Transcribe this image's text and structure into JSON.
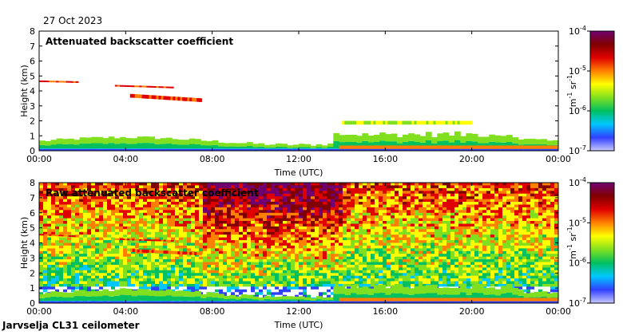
{
  "date_label": "27 Oct 2023",
  "site_label": "Jarvselja CL31 ceilometer",
  "colors": {
    "scale": [
      "#c8c8ff",
      "#3040ff",
      "#00c8ff",
      "#00c060",
      "#80e020",
      "#ffff00",
      "#ff8000",
      "#e00000",
      "#800000",
      "#700070"
    ]
  },
  "chart_data": [
    {
      "type": "heatmap",
      "title": "Attenuated backscatter coefficient",
      "xlabel": "Time (UTC)",
      "ylabel": "Height (km)",
      "x_ticks": [
        "00:00",
        "04:00",
        "08:00",
        "12:00",
        "16:00",
        "20:00",
        "00:00"
      ],
      "y_ticks": [
        "0",
        "1",
        "2",
        "3",
        "4",
        "5",
        "6",
        "7",
        "8"
      ],
      "ylim": [
        0,
        8
      ],
      "colorbar": {
        "ticks_base": [
          "10",
          "10",
          "10",
          "10"
        ],
        "ticks_exp": [
          "-4",
          "-5",
          "-6",
          "-7"
        ],
        "unit_base": "m",
        "unit_exp1": "-1",
        "unit_mid": " sr",
        "unit_exp2": "-1",
        "scale": "log",
        "range": [
          1e-07,
          0.0001
        ]
      },
      "features": [
        {
          "name": "aerosol-layer",
          "x_hours": [
            0,
            24
          ],
          "height_km": [
            0,
            0.6
          ]
        },
        {
          "name": "elevated-layer",
          "x_hours": [
            0,
            1.8
          ],
          "height_km": [
            4.6,
            4.7
          ]
        },
        {
          "name": "elevated-layer",
          "x_hours": [
            3.5,
            6.2
          ],
          "height_km": [
            4.2,
            4.4
          ]
        },
        {
          "name": "elevated-layer",
          "x_hours": [
            4.2,
            7.5
          ],
          "height_km": [
            3.3,
            3.8
          ]
        },
        {
          "name": "low-cloud",
          "x_hours": [
            14,
            20
          ],
          "height_km": [
            1.5,
            2.0
          ]
        }
      ]
    },
    {
      "type": "heatmap",
      "title": "Raw attenuated backscatter coefficient",
      "xlabel": "Time (UTC)",
      "ylabel": "Height (km)",
      "x_ticks": [
        "00:00",
        "04:00",
        "08:00",
        "12:00",
        "16:00",
        "20:00",
        "00:00"
      ],
      "y_ticks": [
        "0",
        "1",
        "2",
        "3",
        "4",
        "5",
        "6",
        "7",
        "8"
      ],
      "ylim": [
        0,
        8
      ],
      "colorbar": {
        "ticks_base": [
          "10",
          "10",
          "10",
          "10"
        ],
        "ticks_exp": [
          "-4",
          "-5",
          "-6",
          "-7"
        ],
        "unit_base": "m",
        "unit_exp1": "-1",
        "unit_mid": " sr",
        "unit_exp2": "-1",
        "scale": "log",
        "range": [
          1e-07,
          0.0001
        ]
      },
      "features": [
        {
          "name": "noise-field",
          "x_hours": [
            0,
            24
          ],
          "height_km": [
            1,
            8
          ]
        },
        {
          "name": "high-noise",
          "x_hours": [
            7.5,
            14
          ],
          "height_km": [
            5,
            8
          ]
        },
        {
          "name": "aerosol-layer",
          "x_hours": [
            0,
            24
          ],
          "height_km": [
            0,
            0.6
          ]
        },
        {
          "name": "elevated-layer",
          "x_hours": [
            0,
            1.8
          ],
          "height_km": [
            4.4,
            4.6
          ]
        },
        {
          "name": "elevated-layer",
          "x_hours": [
            3.5,
            6.2
          ],
          "height_km": [
            4.1,
            4.3
          ]
        },
        {
          "name": "elevated-layer",
          "x_hours": [
            4.2,
            7.5
          ],
          "height_km": [
            3.2,
            3.6
          ]
        }
      ]
    }
  ]
}
